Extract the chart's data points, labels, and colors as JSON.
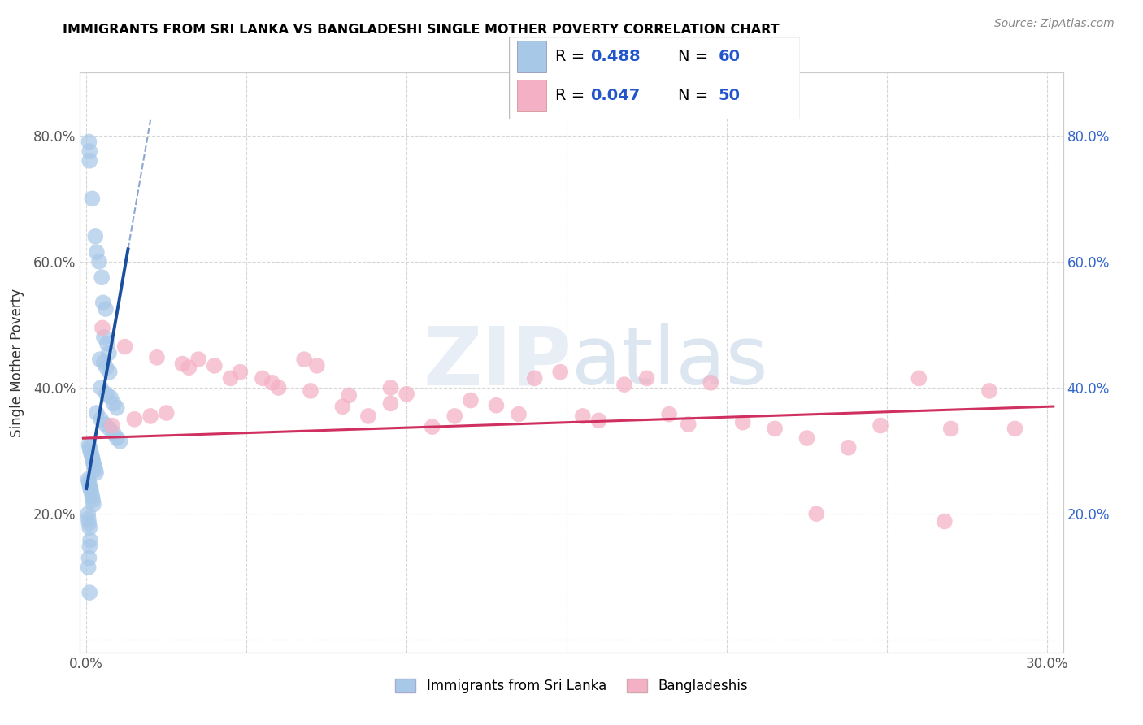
{
  "title": "IMMIGRANTS FROM SRI LANKA VS BANGLADESHI SINGLE MOTHER POVERTY CORRELATION CHART",
  "source": "Source: ZipAtlas.com",
  "ylabel": "Single Mother Poverty",
  "legend_label1": "Immigrants from Sri Lanka",
  "legend_label2": "Bangladeshis",
  "watermark": "ZIPatlas",
  "color_sri_lanka": "#a8c8e8",
  "color_bangladeshi": "#f4b0c4",
  "trendline_sri_lanka": "#1a4fa0",
  "trendline_bangladeshi": "#d03060",
  "text_color_blue": "#2255cc",
  "grid_color": "#cccccc",
  "xlim": [
    -0.002,
    0.305
  ],
  "ylim": [
    -0.02,
    0.9
  ],
  "xtick_positions": [
    0.0,
    0.05,
    0.1,
    0.15,
    0.2,
    0.25,
    0.3
  ],
  "xticklabels": [
    "0.0%",
    "",
    "",
    "",
    "",
    "",
    "30.0%"
  ],
  "ytick_positions": [
    0.0,
    0.2,
    0.4,
    0.6,
    0.8
  ],
  "yticklabels": [
    "",
    "20.0%",
    "40.0%",
    "60.0%",
    "80.0%"
  ],
  "sri_lanka_x": [
    0.001,
    0.001,
    0.002,
    0.002,
    0.002,
    0.003,
    0.003,
    0.003,
    0.004,
    0.004,
    0.004,
    0.005,
    0.005,
    0.005,
    0.006,
    0.006,
    0.006,
    0.007,
    0.007,
    0.007,
    0.008,
    0.008,
    0.008,
    0.009,
    0.009,
    0.01,
    0.01,
    0.01,
    0.011,
    0.011,
    0.012,
    0.012,
    0.013,
    0.013,
    0.001,
    0.001,
    0.001,
    0.002,
    0.002,
    0.002,
    0.003,
    0.003,
    0.003,
    0.004,
    0.004,
    0.005,
    0.005,
    0.006,
    0.006,
    0.007,
    0.001,
    0.001,
    0.002,
    0.002,
    0.003,
    0.003,
    0.004,
    0.004,
    0.005,
    0.001
  ],
  "sri_lanka_y": [
    0.79,
    0.77,
    0.74,
    0.7,
    0.64,
    0.62,
    0.6,
    0.56,
    0.525,
    0.49,
    0.47,
    0.465,
    0.45,
    0.44,
    0.445,
    0.43,
    0.425,
    0.42,
    0.405,
    0.395,
    0.385,
    0.37,
    0.36,
    0.355,
    0.345,
    0.34,
    0.33,
    0.315,
    0.308,
    0.295,
    0.29,
    0.28,
    0.275,
    0.265,
    0.37,
    0.36,
    0.34,
    0.36,
    0.35,
    0.335,
    0.335,
    0.325,
    0.315,
    0.305,
    0.295,
    0.285,
    0.275,
    0.265,
    0.255,
    0.245,
    0.195,
    0.185,
    0.175,
    0.16,
    0.155,
    0.145,
    0.135,
    0.125,
    0.115,
    0.075
  ],
  "bangladeshi_x": [
    0.008,
    0.015,
    0.02,
    0.025,
    0.03,
    0.035,
    0.04,
    0.048,
    0.055,
    0.06,
    0.068,
    0.072,
    0.08,
    0.088,
    0.095,
    0.1,
    0.108,
    0.115,
    0.12,
    0.128,
    0.135,
    0.14,
    0.148,
    0.155,
    0.16,
    0.168,
    0.175,
    0.182,
    0.188,
    0.195,
    0.205,
    0.215,
    0.225,
    0.238,
    0.248,
    0.26,
    0.27,
    0.282,
    0.29,
    0.005,
    0.012,
    0.022,
    0.032,
    0.045,
    0.058,
    0.07,
    0.082,
    0.095,
    0.228,
    0.268
  ],
  "bangladeshi_y": [
    0.34,
    0.35,
    0.355,
    0.36,
    0.438,
    0.445,
    0.435,
    0.425,
    0.415,
    0.4,
    0.445,
    0.435,
    0.37,
    0.355,
    0.4,
    0.39,
    0.338,
    0.355,
    0.38,
    0.372,
    0.358,
    0.415,
    0.425,
    0.355,
    0.348,
    0.405,
    0.415,
    0.358,
    0.342,
    0.408,
    0.345,
    0.335,
    0.32,
    0.305,
    0.34,
    0.415,
    0.335,
    0.395,
    0.335,
    0.495,
    0.465,
    0.448,
    0.432,
    0.415,
    0.408,
    0.395,
    0.388,
    0.375,
    0.2,
    0.188
  ]
}
